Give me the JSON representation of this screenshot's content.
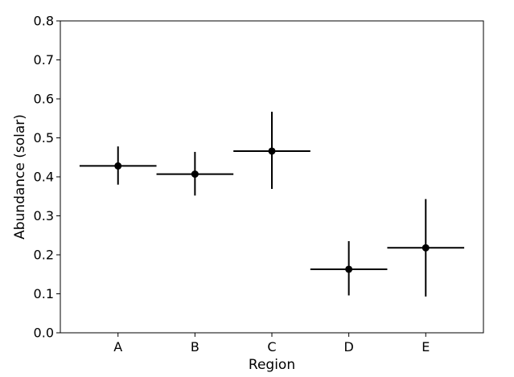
{
  "chart_data": {
    "type": "scatter",
    "title": "",
    "xlabel": "Region",
    "ylabel": "Abundance (solar)",
    "categories": [
      "A",
      "B",
      "C",
      "D",
      "E"
    ],
    "ylim": [
      0,
      0.8
    ],
    "yticks": [
      "0.0",
      "0.1",
      "0.2",
      "0.3",
      "0.4",
      "0.5",
      "0.6",
      "0.7",
      "0.8"
    ],
    "grid": false,
    "legend": "none",
    "marker_color": "#000000",
    "points": [
      {
        "category": "A",
        "value": 0.428,
        "y_err_low": 0.048,
        "y_err_high": 0.05,
        "x_halfwidth": 0.5
      },
      {
        "category": "B",
        "value": 0.407,
        "y_err_low": 0.055,
        "y_err_high": 0.057,
        "x_halfwidth": 0.5
      },
      {
        "category": "C",
        "value": 0.466,
        "y_err_low": 0.097,
        "y_err_high": 0.101,
        "x_halfwidth": 0.5
      },
      {
        "category": "D",
        "value": 0.163,
        "y_err_low": 0.067,
        "y_err_high": 0.072,
        "x_halfwidth": 0.5
      },
      {
        "category": "E",
        "value": 0.218,
        "y_err_low": 0.125,
        "y_err_high": 0.125,
        "x_halfwidth": 0.5
      }
    ]
  }
}
